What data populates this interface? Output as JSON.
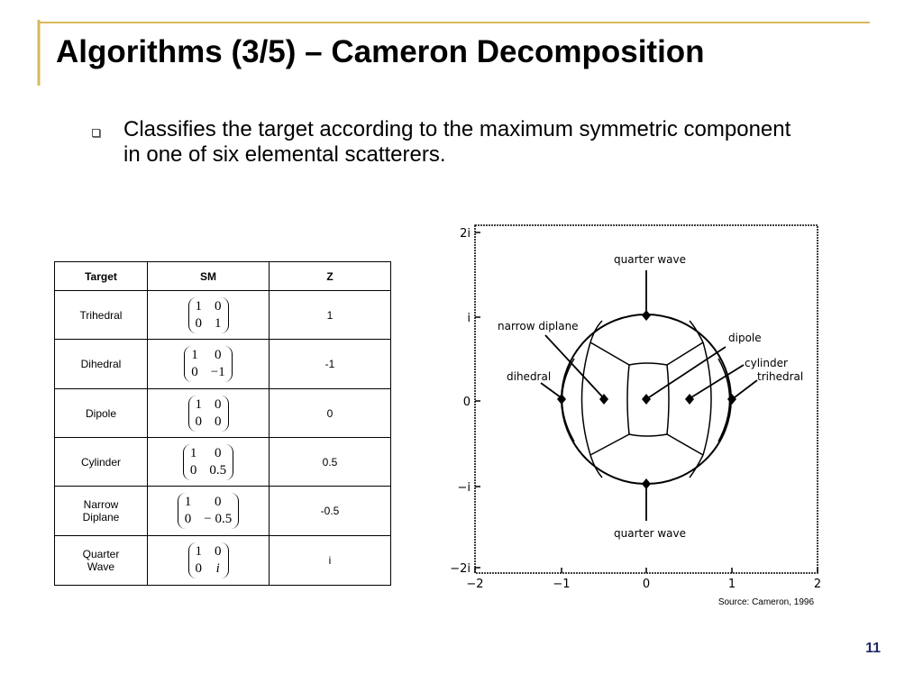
{
  "header": {
    "title": "Algorithms (3/5) – Cameron Decomposition"
  },
  "bullets": [
    "Classifies the target according to the maximum symmetric component in one of six elemental scatterers."
  ],
  "table": {
    "columns": [
      "Target",
      "SM",
      "Z"
    ],
    "rows": [
      {
        "target": "Trihedral",
        "sm": [
          [
            "1",
            "0"
          ],
          [
            "0",
            "1"
          ]
        ],
        "z": "1"
      },
      {
        "target": "Dihedral",
        "sm": [
          [
            "1",
            "0"
          ],
          [
            "0",
            "−1"
          ]
        ],
        "z": "-1"
      },
      {
        "target": "Dipole",
        "sm": [
          [
            "1",
            "0"
          ],
          [
            "0",
            "0"
          ]
        ],
        "z": "0"
      },
      {
        "target": "Cylinder",
        "sm": [
          [
            "1",
            "0"
          ],
          [
            "0",
            "0.5"
          ]
        ],
        "z": "0.5"
      },
      {
        "target": "Narrow Diplane",
        "sm": [
          [
            "1",
            "0"
          ],
          [
            "0",
            "− 0.5"
          ]
        ],
        "z": "-0.5"
      },
      {
        "target": "Quarter Wave",
        "sm": [
          [
            "1",
            "0"
          ],
          [
            "0",
            "i"
          ]
        ],
        "z": "i"
      }
    ]
  },
  "figure": {
    "y_ticks": [
      "2i",
      "i",
      "0",
      "−i",
      "−2i"
    ],
    "x_ticks": [
      "−2",
      "−1",
      "0",
      "1",
      "2"
    ],
    "labels": [
      "quarter wave",
      "narrow diplane",
      "dipole",
      "cylinder",
      "trihedral",
      "dihedral",
      "quarter wave"
    ]
  },
  "source": "Source: Cameron, 1996",
  "page_number": "11"
}
